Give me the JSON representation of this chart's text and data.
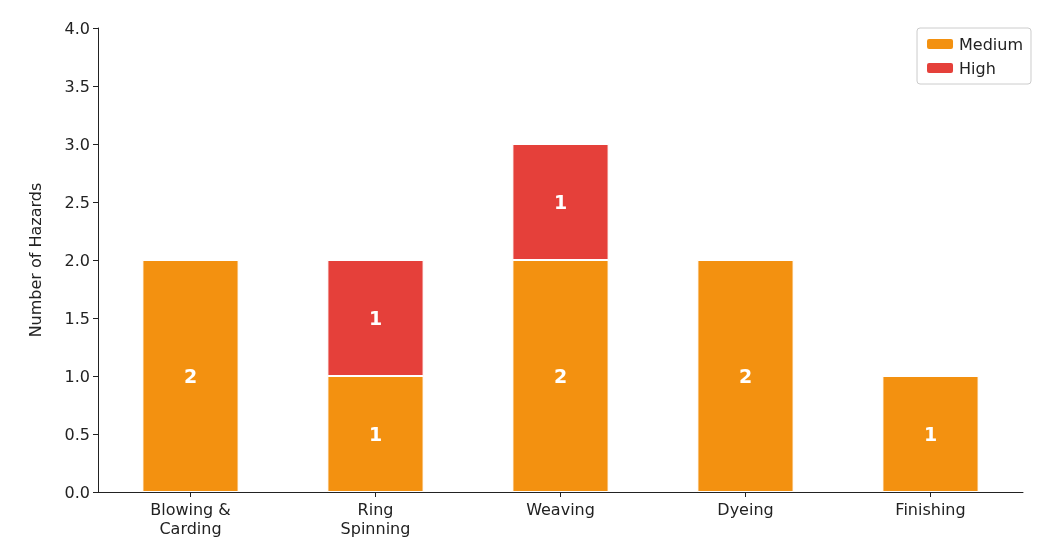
{
  "chart_data": {
    "type": "bar",
    "stacked": true,
    "ylabel": "Number of Hazards",
    "categories": [
      "Blowing &\nCarding",
      "Ring\nSpinning",
      "Weaving",
      "Dyeing",
      "Finishing"
    ],
    "series": [
      {
        "name": "Medium",
        "color": "#f39110",
        "values": [
          2,
          1,
          2,
          2,
          1
        ]
      },
      {
        "name": "High",
        "color": "#e5403a",
        "values": [
          null,
          1,
          1,
          null,
          null
        ]
      }
    ],
    "ylim": [
      0,
      4
    ],
    "yticks": [
      {
        "value": 0,
        "label": "0.0"
      },
      {
        "value": 0.5,
        "label": "0.5"
      },
      {
        "value": 1,
        "label": "1.0"
      },
      {
        "value": 1.5,
        "label": "1.5"
      },
      {
        "value": 2,
        "label": "2.0"
      },
      {
        "value": 2.5,
        "label": "2.5"
      },
      {
        "value": 3,
        "label": "3.0"
      },
      {
        "value": 3.5,
        "label": "3.5"
      },
      {
        "value": 4,
        "label": "4.0"
      }
    ],
    "grid": false,
    "legend": "top right",
    "data_labels": true
  }
}
